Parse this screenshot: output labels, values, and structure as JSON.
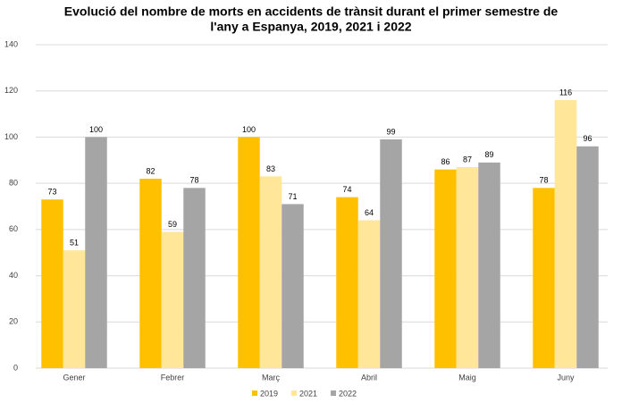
{
  "chart_data": {
    "type": "bar",
    "title": [
      "Evolució del nombre de morts en accidents de trànsit durant el primer semestre de",
      "l'any a Espanya, 2019, 2021 i 2022"
    ],
    "categories": [
      "Gener",
      "Febrer",
      "Març",
      "Abril",
      "Maig",
      "Juny"
    ],
    "series": [
      {
        "name": "2019",
        "color": "#FFC000",
        "values": [
          73,
          82,
          100,
          74,
          86,
          78
        ]
      },
      {
        "name": "2021",
        "color": "#FFE699",
        "values": [
          51,
          59,
          83,
          64,
          87,
          116
        ]
      },
      {
        "name": "2022",
        "color": "#A5A5A5",
        "values": [
          100,
          78,
          71,
          99,
          89,
          96
        ]
      }
    ],
    "ylim": [
      0,
      140
    ],
    "yticks": [
      0,
      20,
      40,
      60,
      80,
      100,
      120,
      140
    ],
    "grid": true,
    "legend": "bottom"
  }
}
